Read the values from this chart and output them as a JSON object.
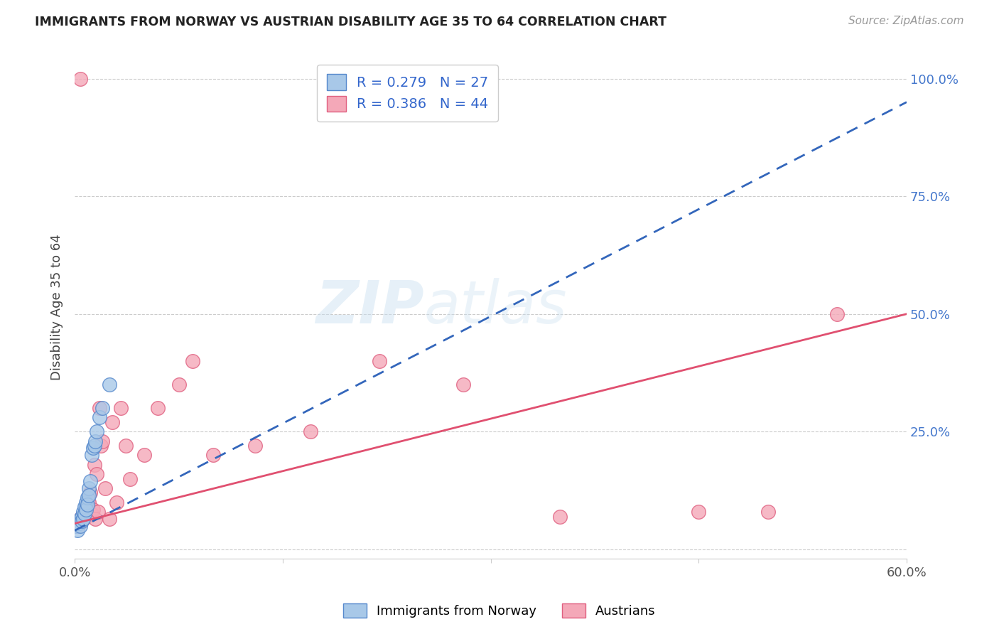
{
  "title": "IMMIGRANTS FROM NORWAY VS AUSTRIAN DISABILITY AGE 35 TO 64 CORRELATION CHART",
  "source": "Source: ZipAtlas.com",
  "ylabel": "Disability Age 35 to 64",
  "xlim": [
    0.0,
    0.6
  ],
  "ylim": [
    -0.02,
    1.05
  ],
  "x_tick_positions": [
    0.0,
    0.15,
    0.3,
    0.45,
    0.6
  ],
  "x_tick_labels": [
    "0.0%",
    "",
    "",
    "",
    "60.0%"
  ],
  "y_tick_positions": [
    0.0,
    0.25,
    0.5,
    0.75,
    1.0
  ],
  "y_tick_labels_right": [
    "",
    "25.0%",
    "50.0%",
    "75.0%",
    "100.0%"
  ],
  "norway_color": "#a8c8e8",
  "austria_color": "#f4a8b8",
  "norway_edge": "#5588cc",
  "austria_edge": "#e06080",
  "norway_R": 0.279,
  "norway_N": 27,
  "austria_R": 0.386,
  "austria_N": 44,
  "norway_line_color": "#3366bb",
  "austria_line_color": "#e05070",
  "watermark": "ZIPatlas",
  "norway_x": [
    0.001,
    0.002,
    0.003,
    0.003,
    0.004,
    0.004,
    0.005,
    0.005,
    0.006,
    0.006,
    0.007,
    0.007,
    0.008,
    0.008,
    0.009,
    0.009,
    0.01,
    0.01,
    0.011,
    0.012,
    0.013,
    0.014,
    0.015,
    0.016,
    0.018,
    0.02,
    0.025
  ],
  "norway_y": [
    0.05,
    0.04,
    0.06,
    0.055,
    0.065,
    0.05,
    0.07,
    0.06,
    0.08,
    0.065,
    0.09,
    0.075,
    0.1,
    0.085,
    0.11,
    0.095,
    0.13,
    0.115,
    0.145,
    0.2,
    0.215,
    0.22,
    0.23,
    0.25,
    0.28,
    0.3,
    0.35
  ],
  "austria_x": [
    0.001,
    0.002,
    0.003,
    0.004,
    0.004,
    0.005,
    0.005,
    0.006,
    0.007,
    0.008,
    0.008,
    0.009,
    0.01,
    0.011,
    0.012,
    0.013,
    0.014,
    0.015,
    0.016,
    0.017,
    0.018,
    0.019,
    0.02,
    0.022,
    0.025,
    0.027,
    0.03,
    0.033,
    0.037,
    0.04,
    0.05,
    0.06,
    0.075,
    0.085,
    0.1,
    0.13,
    0.17,
    0.22,
    0.28,
    0.35,
    0.45,
    0.5,
    0.55,
    0.004
  ],
  "austria_y": [
    0.055,
    0.05,
    0.06,
    0.055,
    0.065,
    0.06,
    0.07,
    0.065,
    0.075,
    0.07,
    0.08,
    0.09,
    0.1,
    0.12,
    0.075,
    0.085,
    0.18,
    0.065,
    0.16,
    0.08,
    0.3,
    0.22,
    0.23,
    0.13,
    0.065,
    0.27,
    0.1,
    0.3,
    0.22,
    0.15,
    0.2,
    0.3,
    0.35,
    0.4,
    0.2,
    0.22,
    0.25,
    0.4,
    0.35,
    0.07,
    0.08,
    0.08,
    0.5,
    1.0
  ],
  "norway_line_x0": 0.0,
  "norway_line_x1": 0.6,
  "norway_line_y0": 0.04,
  "norway_line_y1": 0.95,
  "austria_line_x0": 0.0,
  "austria_line_x1": 0.6,
  "austria_line_y0": 0.055,
  "austria_line_y1": 0.5
}
